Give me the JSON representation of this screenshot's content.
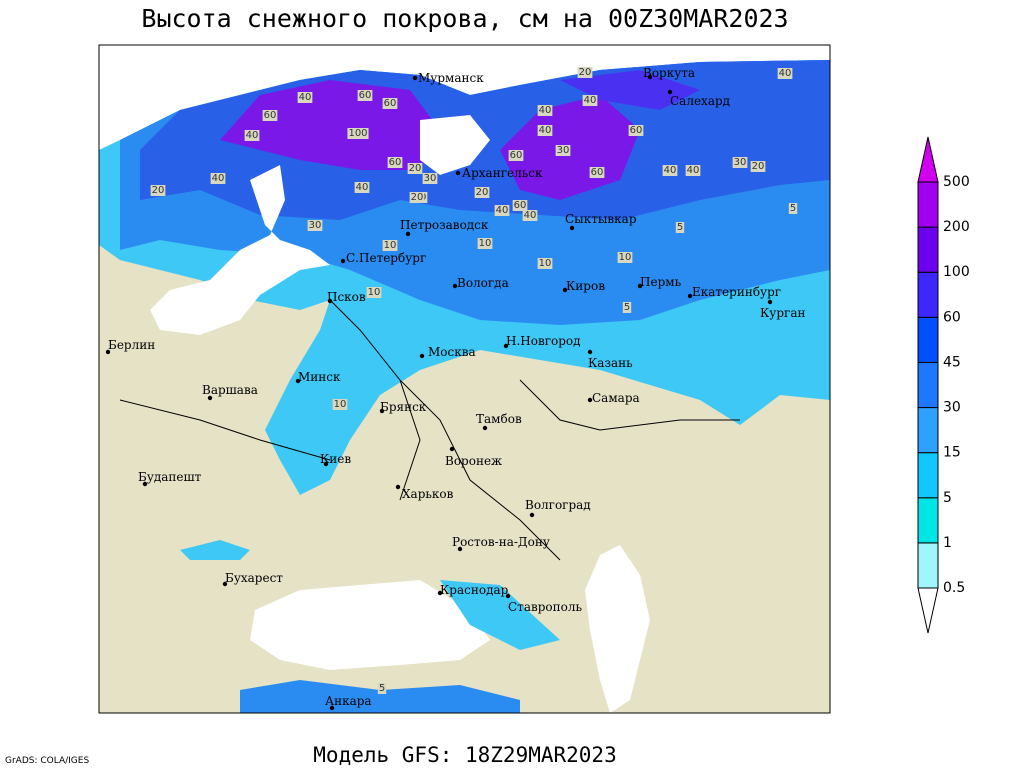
{
  "title": "Высота снежного покрова, см на 00Z30MAR2023",
  "footer": "Модель GFS: 18Z29MAR2023",
  "credit": "GrADS: COLA/IGES",
  "colorbar": {
    "levels": [
      0.5,
      1,
      5,
      15,
      30,
      45,
      60,
      100,
      200,
      500
    ],
    "colors": [
      "#a0f5ff",
      "#00e6e6",
      "#10c8ff",
      "#2ea0ff",
      "#1e78ff",
      "#0050ff",
      "#3c28ff",
      "#6e00f0",
      "#a000f0"
    ],
    "below_color": "#ffffff",
    "above_color": "#d200f0"
  },
  "cities": [
    "Мурманск",
    "Воркута",
    "Салехард",
    "Архангельск",
    "Петрозаводск",
    "Сыктывкар",
    "С.Петербург",
    "Вологда",
    "Киров",
    "Пермь",
    "Екатеринбург",
    "Курган",
    "Псков",
    "Берлин",
    "Н.Новгород",
    "Москва",
    "Казань",
    "Минск",
    "Варшава",
    "Самара",
    "Брянск",
    "Тамбов",
    "Киев",
    "Воронеж",
    "Будапешт",
    "Харьков",
    "Волгоград",
    "Ростов-на-Дону",
    "Бухарест",
    "Краснодар",
    "Ставрополь",
    "Анкара"
  ],
  "contour_labels": [
    20,
    40,
    40,
    60,
    60,
    40,
    100,
    60,
    30,
    40,
    60,
    40,
    40,
    40,
    40,
    40,
    60,
    30,
    60,
    60,
    40,
    40,
    30,
    20,
    20,
    30,
    40,
    20,
    60,
    40,
    10,
    10,
    10,
    10,
    5,
    10,
    5,
    20,
    10,
    20,
    5,
    5
  ]
}
